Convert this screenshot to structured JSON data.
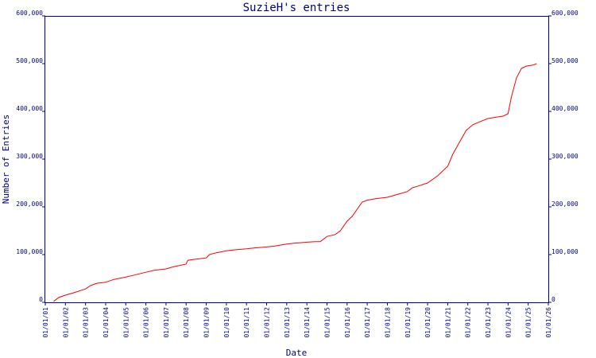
{
  "chart_data": {
    "type": "line",
    "title": "SuzieH's entries",
    "xlabel": "Date",
    "ylabel": "Number of Entries",
    "x_ticks": [
      "01/01/01",
      "01/01/02",
      "01/01/03",
      "01/01/04",
      "01/01/05",
      "01/01/06",
      "01/01/07",
      "01/01/08",
      "01/01/09",
      "01/01/10",
      "01/01/11",
      "01/01/12",
      "01/01/13",
      "01/01/14",
      "01/01/15",
      "01/01/16",
      "01/01/17",
      "01/01/18",
      "01/01/19",
      "01/01/20",
      "01/01/21",
      "01/01/22",
      "01/01/23",
      "01/01/24",
      "01/01/25",
      "01/01/26"
    ],
    "y_ticks": [
      "0",
      "100,000",
      "200,000",
      "300,000",
      "400,000",
      "500,000",
      "600,000"
    ],
    "ylim": [
      0,
      600000
    ],
    "grid": false,
    "colors": {
      "line": "#ff0000",
      "axes": "#000080",
      "text": "#000080"
    },
    "series": [
      {
        "x": [
          "2001-06-01",
          "2001-09-01",
          "2002-01-01",
          "2002-06-01",
          "2003-01-01",
          "2003-04-01",
          "2003-08-01",
          "2004-01-01",
          "2004-06-01",
          "2005-01-01",
          "2005-06-01",
          "2006-01-01",
          "2006-06-01",
          "2007-01-01",
          "2007-06-01",
          "2008-01-01",
          "2008-01-15",
          "2008-02-01",
          "2008-06-01",
          "2009-01-01",
          "2009-03-01",
          "2009-06-01",
          "2010-01-01",
          "2010-06-01",
          "2011-01-01",
          "2011-06-01",
          "2012-01-01",
          "2012-06-01",
          "2013-01-01",
          "2013-06-01",
          "2014-01-01",
          "2014-06-01",
          "2014-09-01",
          "2015-01-01",
          "2015-06-01",
          "2015-09-01",
          "2016-01-01",
          "2016-04-01",
          "2016-07-01",
          "2016-10-01",
          "2017-01-01",
          "2017-06-01",
          "2018-01-01",
          "2018-06-01",
          "2019-01-01",
          "2019-04-01",
          "2019-07-01",
          "2020-01-01",
          "2020-07-01",
          "2021-01-01",
          "2021-04-01",
          "2021-08-01",
          "2021-12-01",
          "2022-04-01",
          "2022-08-01",
          "2023-01-01",
          "2023-06-01",
          "2023-10-01",
          "2024-01-01",
          "2024-03-01",
          "2024-06-01",
          "2024-09-01",
          "2024-12-01",
          "2025-04-01",
          "2025-06-01"
        ],
        "y": [
          2000,
          10000,
          15000,
          20000,
          28000,
          35000,
          40000,
          42000,
          48000,
          53000,
          57000,
          63000,
          67000,
          70000,
          75000,
          80000,
          84000,
          88000,
          90000,
          93000,
          100000,
          103000,
          108000,
          110000,
          112000,
          114000,
          116000,
          118000,
          122000,
          124000,
          126000,
          127000,
          127000,
          138000,
          142000,
          150000,
          170000,
          180000,
          195000,
          210000,
          214000,
          217000,
          220000,
          225000,
          232000,
          240000,
          243000,
          250000,
          265000,
          285000,
          310000,
          335000,
          360000,
          372000,
          378000,
          385000,
          388000,
          390000,
          395000,
          430000,
          470000,
          490000,
          495000,
          497000,
          500000
        ]
      }
    ]
  }
}
